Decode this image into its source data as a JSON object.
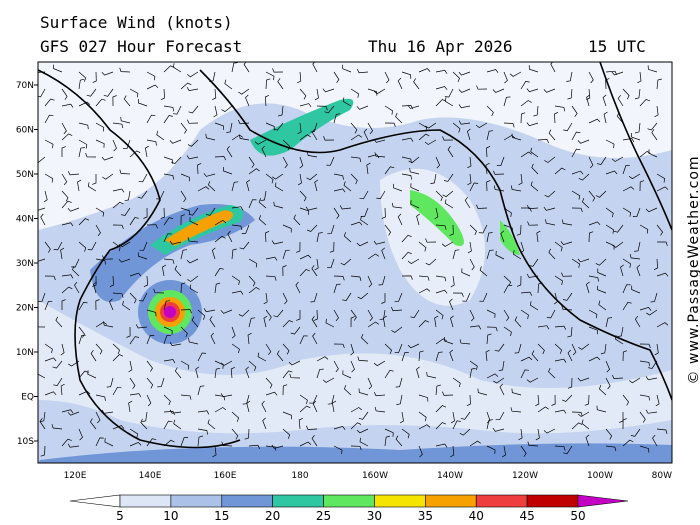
{
  "header": {
    "title": "Surface Wind (knots)",
    "subtitle": "GFS 027 Hour Forecast",
    "date": "Thu 16 Apr 2026",
    "time": "15 UTC"
  },
  "map": {
    "lat_labels": [
      "70N",
      "60N",
      "50N",
      "40N",
      "30N",
      "20N",
      "10N",
      "EQ",
      "10S"
    ],
    "lon_labels": [
      "120E",
      "140E",
      "160E",
      "180",
      "160W",
      "140W",
      "120W",
      "100W",
      "80W"
    ]
  },
  "colorbar": {
    "ticks": [
      5,
      10,
      15,
      20,
      25,
      30,
      35,
      40,
      45,
      50
    ],
    "colors": [
      "#ffffff",
      "#dde6f5",
      "#abc1e8",
      "#7196d8",
      "#2fc6a2",
      "#5fe85f",
      "#f4e400",
      "#f6a100",
      "#ef3e3e",
      "#c00000",
      "#c400c4"
    ]
  },
  "credit": "© www.PassageWeather.com"
}
